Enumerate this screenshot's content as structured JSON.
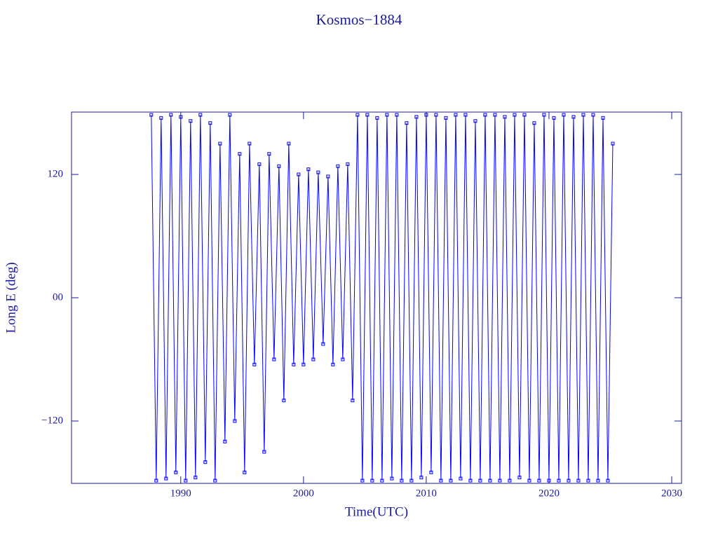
{
  "chart_data": {
    "type": "line",
    "title": "Kosmos−1884",
    "xlabel": "Time(UTC)",
    "ylabel": "Long E (deg)",
    "xlim": [
      1981.1,
      2030.8
    ],
    "ylim": [
      -180.7,
      180.7
    ],
    "xticks": [
      1990,
      2000,
      2010,
      2020,
      2030
    ],
    "yticks": [
      {
        "value": -120,
        "label": "−120"
      },
      {
        "value": 0,
        "label": "00"
      },
      120
    ],
    "x": [
      1987.6,
      1988.0,
      1988.4,
      1988.8,
      1989.2,
      1989.6,
      1990.0,
      1990.4,
      1990.8,
      1991.2,
      1991.6,
      1992.0,
      1992.4,
      1992.8,
      1993.2,
      1993.6,
      1994.0,
      1994.4,
      1994.8,
      1995.2,
      1995.6,
      1996.0,
      1996.4,
      1996.8,
      1997.2,
      1997.6,
      1998.0,
      1998.4,
      1998.8,
      1999.2,
      1999.6,
      2000.0,
      2000.4,
      2000.8,
      2001.2,
      2001.6,
      2002.0,
      2002.4,
      2002.8,
      2003.2,
      2003.6,
      2004.0,
      2004.4,
      2004.8,
      2005.2,
      2005.6,
      2006.0,
      2006.4,
      2006.8,
      2007.2,
      2007.6,
      2008.0,
      2008.4,
      2008.8,
      2009.2,
      2009.6,
      2010.0,
      2010.4,
      2010.8,
      2011.2,
      2011.6,
      2012.0,
      2012.4,
      2012.8,
      2013.2,
      2013.6,
      2014.0,
      2014.4,
      2014.8,
      2015.2,
      2015.6,
      2016.0,
      2016.4,
      2016.8,
      2017.2,
      2017.6,
      2018.0,
      2018.4,
      2018.8,
      2019.2,
      2019.6,
      2020.0,
      2020.4,
      2020.8,
      2021.2,
      2021.6,
      2022.0,
      2022.4,
      2022.8,
      2023.2,
      2023.6,
      2024.0,
      2024.4,
      2024.8,
      2025.2
    ],
    "series": [
      {
        "color": "#0000ff",
        "values": [
          178,
          -178,
          175,
          -176,
          178,
          -170,
          176,
          -178,
          172,
          -175,
          178,
          -160,
          170,
          -178,
          150,
          -140,
          178,
          -120,
          140,
          -170,
          150,
          -65,
          130,
          -150,
          140,
          -60,
          128,
          -100,
          150,
          -65,
          120,
          -65,
          125,
          -60,
          122,
          -45,
          118,
          -65,
          128,
          -60,
          130,
          -100,
          178,
          -178,
          178,
          -178,
          175,
          -178,
          178,
          -176,
          178,
          -178,
          170,
          -178,
          176,
          -175,
          178,
          -170,
          178,
          -178,
          175,
          -178,
          178,
          -176,
          178,
          -178,
          172,
          -178,
          178,
          -178,
          178,
          -178,
          176,
          -178,
          178,
          -175,
          178,
          -178,
          170,
          -178,
          178,
          -178,
          175,
          -178,
          178,
          -178,
          176,
          -178,
          178,
          -178,
          178,
          -178,
          175,
          -178,
          150
        ]
      }
    ]
  }
}
